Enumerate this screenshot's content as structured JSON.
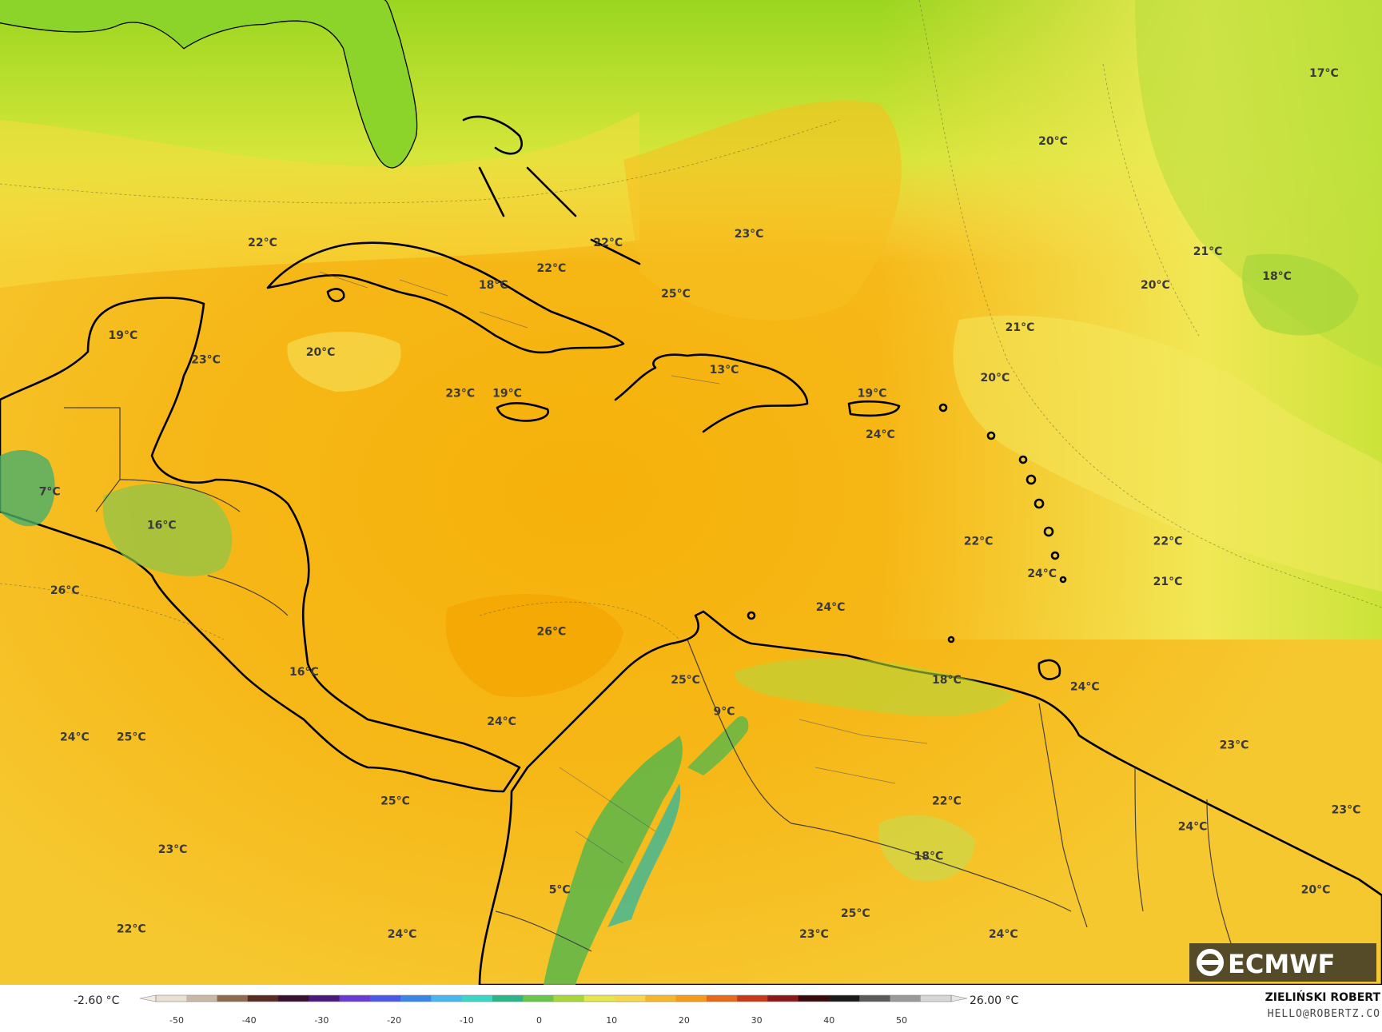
{
  "map": {
    "labels": [
      {
        "text": "17°C",
        "lon": 0.958,
        "lat": 0.078
      },
      {
        "text": "20°C",
        "lon": 0.762,
        "lat": 0.147
      },
      {
        "text": "23°C",
        "lon": 0.542,
        "lat": 0.241
      },
      {
        "text": "22°C",
        "lon": 0.19,
        "lat": 0.25
      },
      {
        "text": "22°C",
        "lon": 0.44,
        "lat": 0.25
      },
      {
        "text": "22°C",
        "lon": 0.399,
        "lat": 0.276
      },
      {
        "text": "21°C",
        "lon": 0.874,
        "lat": 0.259
      },
      {
        "text": "18°C",
        "lon": 0.924,
        "lat": 0.284
      },
      {
        "text": "20°C",
        "lon": 0.836,
        "lat": 0.293
      },
      {
        "text": "18°C",
        "lon": 0.357,
        "lat": 0.293
      },
      {
        "text": "25°C",
        "lon": 0.489,
        "lat": 0.302
      },
      {
        "text": "19°C",
        "lon": 0.089,
        "lat": 0.344
      },
      {
        "text": "21°C",
        "lon": 0.738,
        "lat": 0.336
      },
      {
        "text": "20°C",
        "lon": 0.232,
        "lat": 0.361
      },
      {
        "text": "23°C",
        "lon": 0.149,
        "lat": 0.369
      },
      {
        "text": "20°C",
        "lon": 0.72,
        "lat": 0.387
      },
      {
        "text": "13°C",
        "lon": 0.524,
        "lat": 0.379
      },
      {
        "text": "23°C",
        "lon": 0.333,
        "lat": 0.403
      },
      {
        "text": "19°C",
        "lon": 0.367,
        "lat": 0.403
      },
      {
        "text": "19°C",
        "lon": 0.631,
        "lat": 0.403
      },
      {
        "text": "24°C",
        "lon": 0.637,
        "lat": 0.445
      },
      {
        "text": "7°C",
        "lon": 0.036,
        "lat": 0.503
      },
      {
        "text": "16°C",
        "lon": 0.117,
        "lat": 0.537
      },
      {
        "text": "22°C",
        "lon": 0.708,
        "lat": 0.553
      },
      {
        "text": "22°C",
        "lon": 0.845,
        "lat": 0.553
      },
      {
        "text": "24°C",
        "lon": 0.754,
        "lat": 0.586
      },
      {
        "text": "21°C",
        "lon": 0.845,
        "lat": 0.594
      },
      {
        "text": "26°C",
        "lon": 0.047,
        "lat": 0.603
      },
      {
        "text": "24°C",
        "lon": 0.601,
        "lat": 0.62
      },
      {
        "text": "26°C",
        "lon": 0.399,
        "lat": 0.645
      },
      {
        "text": "25°C",
        "lon": 0.496,
        "lat": 0.694
      },
      {
        "text": "18°C",
        "lon": 0.685,
        "lat": 0.694
      },
      {
        "text": "24°C",
        "lon": 0.785,
        "lat": 0.701
      },
      {
        "text": "16°C",
        "lon": 0.22,
        "lat": 0.686
      },
      {
        "text": "9°C",
        "lon": 0.524,
        "lat": 0.726
      },
      {
        "text": "24°C",
        "lon": 0.363,
        "lat": 0.736
      },
      {
        "text": "24°C",
        "lon": 0.054,
        "lat": 0.752
      },
      {
        "text": "25°C",
        "lon": 0.095,
        "lat": 0.752
      },
      {
        "text": "23°C",
        "lon": 0.893,
        "lat": 0.76
      },
      {
        "text": "22°C",
        "lon": 0.685,
        "lat": 0.817
      },
      {
        "text": "23°C",
        "lon": 0.974,
        "lat": 0.826
      },
      {
        "text": "24°C",
        "lon": 0.863,
        "lat": 0.843
      },
      {
        "text": "25°C",
        "lon": 0.286,
        "lat": 0.817
      },
      {
        "text": "18°C",
        "lon": 0.672,
        "lat": 0.873
      },
      {
        "text": "23°C",
        "lon": 0.125,
        "lat": 0.866
      },
      {
        "text": "5°C",
        "lon": 0.405,
        "lat": 0.907
      },
      {
        "text": "20°C",
        "lon": 0.952,
        "lat": 0.907
      },
      {
        "text": "22°C",
        "lon": 0.095,
        "lat": 0.947
      },
      {
        "text": "24°C",
        "lon": 0.291,
        "lat": 0.952
      },
      {
        "text": "23°C",
        "lon": 0.589,
        "lat": 0.952
      },
      {
        "text": "25°C",
        "lon": 0.619,
        "lat": 0.931
      },
      {
        "text": "24°C",
        "lon": 0.726,
        "lat": 0.952
      }
    ]
  },
  "colorbar": {
    "min_label": "-2.60 °C",
    "max_label": "26.00 °C",
    "ticks": [
      "-50",
      "-40",
      "-30",
      "-20",
      "-10",
      "0",
      "10",
      "20",
      "30",
      "40",
      "50"
    ],
    "colors": [
      "#e8e0d0",
      "#c9b8a6",
      "#8f6a4e",
      "#5a2b22",
      "#3a1030",
      "#4a1a7a",
      "#6a3ad6",
      "#4a5ae6",
      "#3a86e6",
      "#4ab6f0",
      "#3ad6c8",
      "#2ab688",
      "#6ac64a",
      "#a6d63a",
      "#e6e64a",
      "#f6d64a",
      "#f6b62a",
      "#f69a1a",
      "#e66a1a",
      "#c63a1a",
      "#8a1a1a",
      "#3a0a0a",
      "#1a1a1a",
      "#5a5a5a",
      "#9a9a9a",
      "#d6d6d6"
    ]
  },
  "credits": {
    "line1": "ZIELIŃSKI ROBERT",
    "line2": "HELLO@ROBERTZ.CO"
  },
  "logo": {
    "text": "ECMWF"
  }
}
